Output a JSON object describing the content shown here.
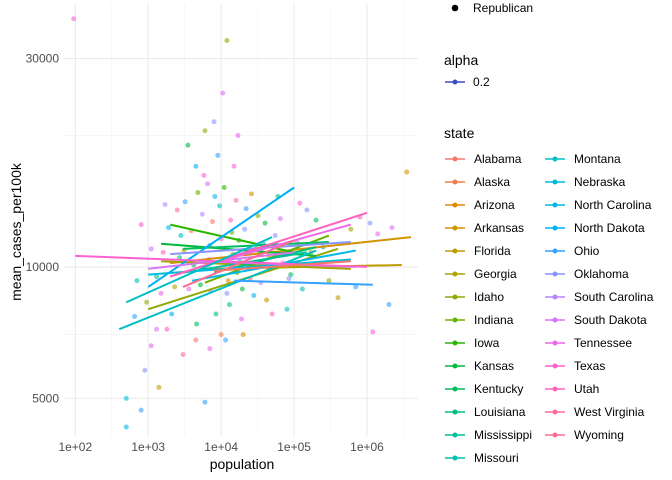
{
  "chart_data": {
    "type": "scatter",
    "xlabel": "population",
    "ylabel": "mean_cases_per100k",
    "x_scale": "log10",
    "y_scale": "log10",
    "xlim": [
      70,
      5000000
    ],
    "ylim": [
      4100,
      40000
    ],
    "x_ticks": [
      {
        "value": 100,
        "label": "1e+02"
      },
      {
        "value": 1000,
        "label": "1e+03"
      },
      {
        "value": 10000,
        "label": "1e+04"
      },
      {
        "value": 100000,
        "label": "1e+05"
      },
      {
        "value": 1000000,
        "label": "1e+06"
      }
    ],
    "y_ticks": [
      {
        "value": 5000,
        "label": "5000"
      },
      {
        "value": 10000,
        "label": "10000"
      },
      {
        "value": 30000,
        "label": "30000"
      }
    ],
    "grid": true,
    "legend": {
      "placement": "right",
      "shape_title": "",
      "shape_label": "Republican",
      "alpha_title": "alpha",
      "alpha_label": "0.2",
      "alpha_color": "#3B4CC0",
      "state_title": "state",
      "states": [
        {
          "name": "Alabama",
          "color": "#F8766D"
        },
        {
          "name": "Alaska",
          "color": "#EF7F49"
        },
        {
          "name": "Arizona",
          "color": "#E38900"
        },
        {
          "name": "Arkansas",
          "color": "#D39200"
        },
        {
          "name": "Florida",
          "color": "#C09B00"
        },
        {
          "name": "Georgia",
          "color": "#AAA300"
        },
        {
          "name": "Idaho",
          "color": "#8FAA00"
        },
        {
          "name": "Indiana",
          "color": "#6BB100"
        },
        {
          "name": "Iowa",
          "color": "#2BB600"
        },
        {
          "name": "Kansas",
          "color": "#00BA38"
        },
        {
          "name": "Kentucky",
          "color": "#00BD5F"
        },
        {
          "name": "Louisiana",
          "color": "#00BF7D"
        },
        {
          "name": "Mississippi",
          "color": "#00C097"
        },
        {
          "name": "Missouri",
          "color": "#00C0AF"
        },
        {
          "name": "Montana",
          "color": "#00BFC4"
        },
        {
          "name": "Nebraska",
          "color": "#00BCD8"
        },
        {
          "name": "North Carolina",
          "color": "#00B7E9"
        },
        {
          "name": "North Dakota",
          "color": "#00B0F6"
        },
        {
          "name": "Ohio",
          "color": "#35A2FF"
        },
        {
          "name": "Oklahoma",
          "color": "#8B93FF"
        },
        {
          "name": "South Carolina",
          "color": "#B983FF"
        },
        {
          "name": "South Dakota",
          "color": "#DB72FB"
        },
        {
          "name": "Tennessee",
          "color": "#EF67EB"
        },
        {
          "name": "Texas",
          "color": "#FD61D1"
        },
        {
          "name": "Utah",
          "color": "#FF62BC"
        },
        {
          "name": "West Virginia",
          "color": "#FF6A98"
        },
        {
          "name": "Wyoming",
          "color": "#FF6C91"
        }
      ]
    },
    "trend_lines": [
      {
        "state": "Arkansas",
        "x": [
          2000,
          4000000
        ],
        "y": [
          10200,
          11700
        ]
      },
      {
        "state": "Florida",
        "x": [
          8000,
          3000000
        ],
        "y": [
          9900,
          10100
        ]
      },
      {
        "state": "Georgia",
        "x": [
          1500,
          600000
        ],
        "y": [
          10300,
          9900
        ]
      },
      {
        "state": "Idaho",
        "x": [
          1000,
          400000
        ],
        "y": [
          8000,
          11000
        ]
      },
      {
        "state": "Indiana",
        "x": [
          6000,
          300000
        ],
        "y": [
          9200,
          11800
        ]
      },
      {
        "state": "Iowa",
        "x": [
          2000,
          100000
        ],
        "y": [
          12500,
          10800
        ]
      },
      {
        "state": "Kansas",
        "x": [
          1500,
          200000
        ],
        "y": [
          11300,
          10600
        ]
      },
      {
        "state": "Kentucky",
        "x": [
          3000,
          300000
        ],
        "y": [
          11000,
          11400
        ]
      },
      {
        "state": "Louisiana",
        "x": [
          8000,
          200000
        ],
        "y": [
          9700,
          11100
        ]
      },
      {
        "state": "Mississippi",
        "x": [
          3000,
          150000
        ],
        "y": [
          9700,
          10800
        ]
      },
      {
        "state": "Montana",
        "x": [
          400,
          200000
        ],
        "y": [
          7200,
          10900
        ]
      },
      {
        "state": "Nebraska",
        "x": [
          1000,
          600000
        ],
        "y": [
          9600,
          10400
        ]
      },
      {
        "state": "North Carolina",
        "x": [
          4000,
          700000
        ],
        "y": [
          9300,
          10900
        ]
      },
      {
        "state": "North Dakota",
        "x": [
          1000,
          100000
        ],
        "y": [
          9000,
          15200
        ]
      },
      {
        "state": "Ohio",
        "x": [
          15000,
          1200000
        ],
        "y": [
          9300,
          9100
        ]
      },
      {
        "state": "Oklahoma",
        "x": [
          2000,
          600000
        ],
        "y": [
          10700,
          11400
        ]
      },
      {
        "state": "South Carolina",
        "x": [
          5000,
          700000
        ],
        "y": [
          10300,
          10000
        ]
      },
      {
        "state": "South Dakota",
        "x": [
          1000,
          100000
        ],
        "y": [
          9900,
          10800
        ]
      },
      {
        "state": "Tennessee",
        "x": [
          5000,
          600000
        ],
        "y": [
          10000,
          12500
        ]
      },
      {
        "state": "Texas",
        "x": [
          100,
          1000000
        ],
        "y": [
          10600,
          10000
        ]
      },
      {
        "state": "Utah",
        "x": [
          2000,
          1000000
        ],
        "y": [
          9500,
          13300
        ]
      },
      {
        "state": "Wyoming",
        "x": [
          3000,
          100000
        ],
        "y": [
          9000,
          11500
        ]
      },
      {
        "state": "Alabama",
        "x": [
          8000,
          600000
        ],
        "y": [
          9800,
          10300
        ]
      },
      {
        "state": "Montana",
        "x": [
          500,
          50000
        ],
        "y": [
          8300,
          11700
        ]
      }
    ],
    "points": [
      {
        "x": 95,
        "y": 37000,
        "state": "Texas"
      },
      {
        "x": 12000,
        "y": 33000,
        "state": "Idaho"
      },
      {
        "x": 10500,
        "y": 25000,
        "state": "South Dakota"
      },
      {
        "x": 8000,
        "y": 21500,
        "state": "Oklahoma"
      },
      {
        "x": 17000,
        "y": 20000,
        "state": "Tennessee"
      },
      {
        "x": 3500000,
        "y": 16500,
        "state": "Arkansas"
      },
      {
        "x": 6000,
        "y": 20500,
        "state": "Idaho"
      },
      {
        "x": 3500,
        "y": 19000,
        "state": "Kansas"
      },
      {
        "x": 4500,
        "y": 17000,
        "state": "North Dakota"
      },
      {
        "x": 9000,
        "y": 18000,
        "state": "Ohio"
      },
      {
        "x": 15000,
        "y": 17000,
        "state": "Texas"
      },
      {
        "x": 500,
        "y": 5000,
        "state": "Nebraska"
      },
      {
        "x": 500,
        "y": 4300,
        "state": "North Carolina"
      },
      {
        "x": 800,
        "y": 4700,
        "state": "Ohio"
      },
      {
        "x": 6000,
        "y": 4900,
        "state": "Ohio"
      },
      {
        "x": 1400,
        "y": 5300,
        "state": "Florida"
      },
      {
        "x": 900,
        "y": 5800,
        "state": "Oklahoma"
      },
      {
        "x": 1100,
        "y": 6600,
        "state": "Tennessee"
      },
      {
        "x": 1300,
        "y": 7200,
        "state": "South Dakota"
      },
      {
        "x": 1800,
        "y": 7200,
        "state": "Utah"
      },
      {
        "x": 3000,
        "y": 6300,
        "state": "Wyoming"
      },
      {
        "x": 4500,
        "y": 6800,
        "state": "Alabama"
      },
      {
        "x": 7000,
        "y": 6500,
        "state": "Tennessee"
      },
      {
        "x": 10000,
        "y": 7000,
        "state": "Alaska"
      },
      {
        "x": 20000,
        "y": 7000,
        "state": "Arizona"
      },
      {
        "x": 1200000,
        "y": 7100,
        "state": "Texas"
      },
      {
        "x": 2000000,
        "y": 8200,
        "state": "Ohio"
      },
      {
        "x": 1400000,
        "y": 11900,
        "state": "Tennessee"
      },
      {
        "x": 2200000,
        "y": 12300,
        "state": "South Dakota"
      },
      {
        "x": 1100000,
        "y": 12600,
        "state": "Oklahoma"
      },
      {
        "x": 800000,
        "y": 13000,
        "state": "Utah"
      },
      {
        "x": 600000,
        "y": 12200,
        "state": "Georgia"
      },
      {
        "x": 400000,
        "y": 8500,
        "state": "Florida"
      },
      {
        "x": 300000,
        "y": 9300,
        "state": "Idaho"
      },
      {
        "x": 700000,
        "y": 9000,
        "state": "Ohio"
      },
      {
        "x": 150000,
        "y": 13500,
        "state": "Oklahoma"
      },
      {
        "x": 200000,
        "y": 12800,
        "state": "Kentucky"
      },
      {
        "x": 120000,
        "y": 14000,
        "state": "Texas"
      },
      {
        "x": 60000,
        "y": 14500,
        "state": "Louisiana"
      },
      {
        "x": 80000,
        "y": 8000,
        "state": "Montana"
      },
      {
        "x": 50000,
        "y": 7800,
        "state": "Utah"
      },
      {
        "x": 40000,
        "y": 12600,
        "state": "Kansas"
      },
      {
        "x": 30000,
        "y": 11000,
        "state": "Iowa"
      },
      {
        "x": 25000,
        "y": 9400,
        "state": "Alabama"
      },
      {
        "x": 18000,
        "y": 10300,
        "state": "North Dakota"
      },
      {
        "x": 14000,
        "y": 12000,
        "state": "Indiana"
      },
      {
        "x": 12000,
        "y": 8700,
        "state": "Oklahoma"
      },
      {
        "x": 9000,
        "y": 9800,
        "state": "Arizona"
      },
      {
        "x": 7000,
        "y": 11200,
        "state": "Nebraska"
      },
      {
        "x": 5500,
        "y": 13200,
        "state": "South Carolina"
      },
      {
        "x": 4200,
        "y": 10100,
        "state": "Kentucky"
      },
      {
        "x": 3600,
        "y": 8900,
        "state": "Tennessee"
      },
      {
        "x": 2800,
        "y": 11800,
        "state": "Montana"
      },
      {
        "x": 2300,
        "y": 9000,
        "state": "Georgia"
      },
      {
        "x": 1900,
        "y": 12300,
        "state": "North Carolina"
      },
      {
        "x": 1600,
        "y": 10800,
        "state": "Utah"
      },
      {
        "x": 1300,
        "y": 9500,
        "state": "Mississippi"
      },
      {
        "x": 1100,
        "y": 11000,
        "state": "South Dakota"
      },
      {
        "x": 950,
        "y": 8300,
        "state": "Idaho"
      },
      {
        "x": 800,
        "y": 12500,
        "state": "Texas"
      },
      {
        "x": 700,
        "y": 9300,
        "state": "Missouri"
      },
      {
        "x": 650,
        "y": 7700,
        "state": "Ohio"
      },
      {
        "x": 11000,
        "y": 15200,
        "state": "Iowa"
      },
      {
        "x": 16000,
        "y": 14200,
        "state": "West Virginia"
      },
      {
        "x": 22000,
        "y": 13600,
        "state": "Ohio"
      },
      {
        "x": 35000,
        "y": 9200,
        "state": "South Carolina"
      },
      {
        "x": 45000,
        "y": 10600,
        "state": "Arkansas"
      },
      {
        "x": 55000,
        "y": 11800,
        "state": "Oklahoma"
      },
      {
        "x": 70000,
        "y": 10200,
        "state": "Tennessee"
      },
      {
        "x": 90000,
        "y": 9600,
        "state": "Kentucky"
      },
      {
        "x": 110000,
        "y": 11400,
        "state": "Utah"
      },
      {
        "x": 130000,
        "y": 8900,
        "state": "Missouri"
      },
      {
        "x": 170000,
        "y": 10800,
        "state": "Florida"
      },
      {
        "x": 250000,
        "y": 11100,
        "state": "Nebraska"
      },
      {
        "x": 6500,
        "y": 15500,
        "state": "South Dakota"
      },
      {
        "x": 4800,
        "y": 14800,
        "state": "Indiana"
      },
      {
        "x": 3200,
        "y": 14100,
        "state": "Ohio"
      },
      {
        "x": 2500,
        "y": 13500,
        "state": "Wyoming"
      },
      {
        "x": 8500,
        "y": 7800,
        "state": "Louisiana"
      },
      {
        "x": 13000,
        "y": 8200,
        "state": "Mississippi"
      },
      {
        "x": 19000,
        "y": 7600,
        "state": "Tennessee"
      },
      {
        "x": 28000,
        "y": 8600,
        "state": "North Carolina"
      },
      {
        "x": 5200,
        "y": 9100,
        "state": "Kansas"
      },
      {
        "x": 7600,
        "y": 12700,
        "state": "Alabama"
      },
      {
        "x": 10000,
        "y": 11600,
        "state": "Texas"
      },
      {
        "x": 14500,
        "y": 10700,
        "state": "Georgia"
      },
      {
        "x": 21000,
        "y": 12200,
        "state": "Oklahoma"
      },
      {
        "x": 32000,
        "y": 13100,
        "state": "Idaho"
      },
      {
        "x": 48000,
        "y": 9900,
        "state": "Wyoming"
      },
      {
        "x": 2100,
        "y": 7800,
        "state": "North Dakota"
      },
      {
        "x": 1700,
        "y": 13900,
        "state": "South Carolina"
      },
      {
        "x": 6800,
        "y": 10400,
        "state": "Utah"
      },
      {
        "x": 9500,
        "y": 13800,
        "state": "Montana"
      },
      {
        "x": 12500,
        "y": 9300,
        "state": "Arizona"
      },
      {
        "x": 17500,
        "y": 11500,
        "state": "Iowa"
      },
      {
        "x": 24000,
        "y": 10000,
        "state": "West Virginia"
      },
      {
        "x": 38000,
        "y": 11300,
        "state": "Nebraska"
      },
      {
        "x": 65000,
        "y": 12900,
        "state": "South Dakota"
      },
      {
        "x": 85000,
        "y": 9400,
        "state": "Oklahoma"
      },
      {
        "x": 3900,
        "y": 12100,
        "state": "Alaska"
      },
      {
        "x": 2700,
        "y": 10500,
        "state": "Louisiana"
      },
      {
        "x": 1500,
        "y": 8700,
        "state": "Tennessee"
      },
      {
        "x": 4600,
        "y": 7400,
        "state": "Kentucky"
      },
      {
        "x": 11500,
        "y": 6800,
        "state": "Ohio"
      },
      {
        "x": 16500,
        "y": 9700,
        "state": "Indiana"
      },
      {
        "x": 26000,
        "y": 14700,
        "state": "Arkansas"
      },
      {
        "x": 42000,
        "y": 8400,
        "state": "Florida"
      },
      {
        "x": 5800,
        "y": 16200,
        "state": "Texas"
      },
      {
        "x": 8200,
        "y": 14500,
        "state": "North Carolina"
      },
      {
        "x": 3100,
        "y": 10900,
        "state": "Georgia"
      },
      {
        "x": 7200,
        "y": 8800,
        "state": "South Dakota"
      },
      {
        "x": 13500,
        "y": 12800,
        "state": "Utah"
      },
      {
        "x": 19500,
        "y": 8900,
        "state": "Kansas"
      }
    ]
  }
}
